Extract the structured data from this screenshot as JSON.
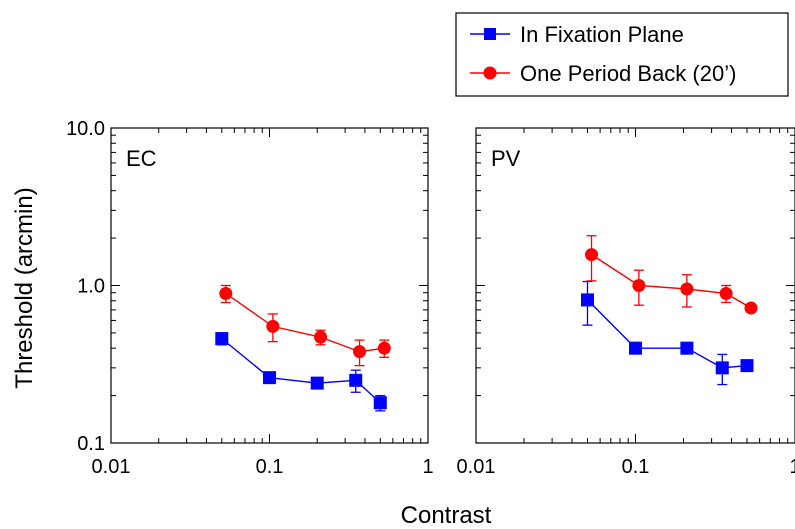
{
  "legend": {
    "placement": "top-right, outside panels",
    "entries": [
      {
        "label": "In Fixation Plane",
        "color": "#0000ff",
        "marker": "square"
      },
      {
        "label": "One Period Back (20’)",
        "color": "#ff0000",
        "marker": "circle"
      }
    ]
  },
  "ylabel": "Threshold (arcmin)",
  "xlabel": "Contrast",
  "chart_data": [
    {
      "type": "line",
      "panel_label": "EC",
      "xscale": "log",
      "yscale": "log",
      "xlim": [
        0.01,
        1
      ],
      "ylim": [
        0.1,
        10
      ],
      "xticks": [
        "0.01",
        "0.1",
        "1"
      ],
      "yticks": [
        "0.1",
        "1.0",
        "10.0"
      ],
      "grid": false,
      "series": [
        {
          "name": "In Fixation Plane",
          "color": "#0000ff",
          "marker": "square",
          "x": [
            0.05,
            0.1,
            0.2,
            0.35,
            0.5
          ],
          "y": [
            0.46,
            0.26,
            0.24,
            0.25,
            0.18
          ],
          "err": [
            0.04,
            0.015,
            0.015,
            0.04,
            0.02
          ]
        },
        {
          "name": "One Period Back (20’)",
          "color": "#ff0000",
          "marker": "circle",
          "x": [
            0.053,
            0.105,
            0.21,
            0.37,
            0.53
          ],
          "y": [
            0.89,
            0.55,
            0.47,
            0.38,
            0.4
          ],
          "err": [
            0.11,
            0.11,
            0.05,
            0.07,
            0.05
          ]
        }
      ]
    },
    {
      "type": "line",
      "panel_label": "PV",
      "xscale": "log",
      "yscale": "log",
      "xlim": [
        0.01,
        1
      ],
      "ylim": [
        0.1,
        10
      ],
      "xticks": [
        "0.01",
        "0.1",
        "1"
      ],
      "yticks": [],
      "grid": false,
      "series": [
        {
          "name": "In Fixation Plane",
          "color": "#0000ff",
          "marker": "square",
          "x": [
            0.05,
            0.1,
            0.21,
            0.35,
            0.5
          ],
          "y": [
            0.81,
            0.4,
            0.4,
            0.3,
            0.31
          ],
          "err": [
            0.25,
            0.02,
            0.02,
            0.065,
            0.01
          ]
        },
        {
          "name": "One Period Back (20’)",
          "color": "#ff0000",
          "marker": "circle",
          "x": [
            0.053,
            0.105,
            0.21,
            0.37,
            0.53
          ],
          "y": [
            1.57,
            1.0,
            0.95,
            0.89,
            0.72
          ],
          "err": [
            0.5,
            0.25,
            0.22,
            0.11,
            0.02
          ]
        }
      ]
    }
  ]
}
